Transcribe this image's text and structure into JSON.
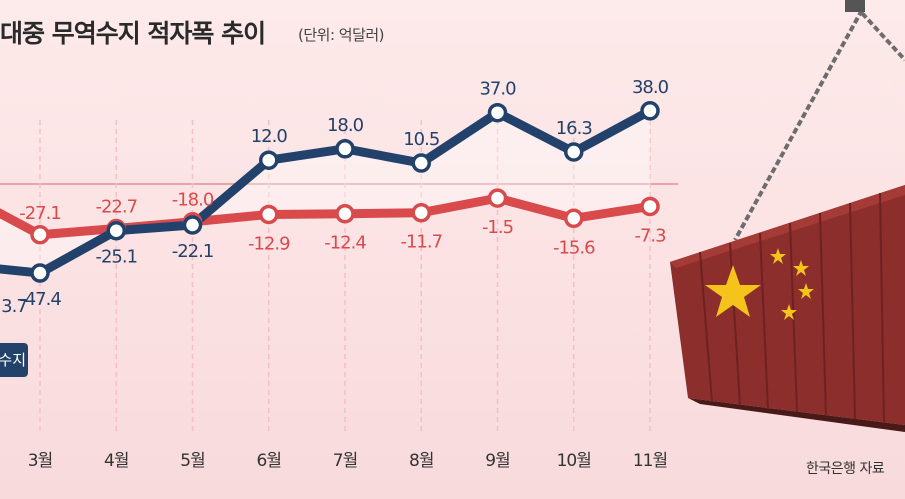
{
  "header": {
    "title": "대중 무역수지 적자폭 추이",
    "unit": "(단위: 억달러)"
  },
  "legend": {
    "label": "수지"
  },
  "source": "한국은행 자료",
  "colors": {
    "navy": "#23426b",
    "red": "#d94a4c",
    "baseline": "#e8a4a8"
  },
  "image": {
    "description": "Shipping container with Chinese flag hanging from chain"
  },
  "chart_data": {
    "type": "line",
    "categories": [
      "3월",
      "4월",
      "5월",
      "6월",
      "7월",
      "8월",
      "9월",
      "10월",
      "11월"
    ],
    "partial_first_labels": {
      "navy": "3.7"
    },
    "series": [
      {
        "values": [
          -47.4,
          -25.1,
          -22.1,
          12.0,
          18.0,
          10.5,
          37.0,
          16.3,
          38.0
        ],
        "labels": [
          "-47.4",
          "-25.1",
          "-22.1",
          "12.0",
          "18.0",
          "10.5",
          "37.0",
          "16.3",
          "38.0"
        ]
      },
      {
        "values": [
          -27.1,
          -22.7,
          -18.0,
          -12.9,
          -12.4,
          -11.7,
          -1.5,
          -15.6,
          -7.3
        ],
        "labels": [
          "-27.1",
          "-22.7",
          "-18.0",
          "-12.9",
          "-12.4",
          "-11.7",
          "-1.5",
          "-15.6",
          "-7.3"
        ]
      }
    ]
  }
}
